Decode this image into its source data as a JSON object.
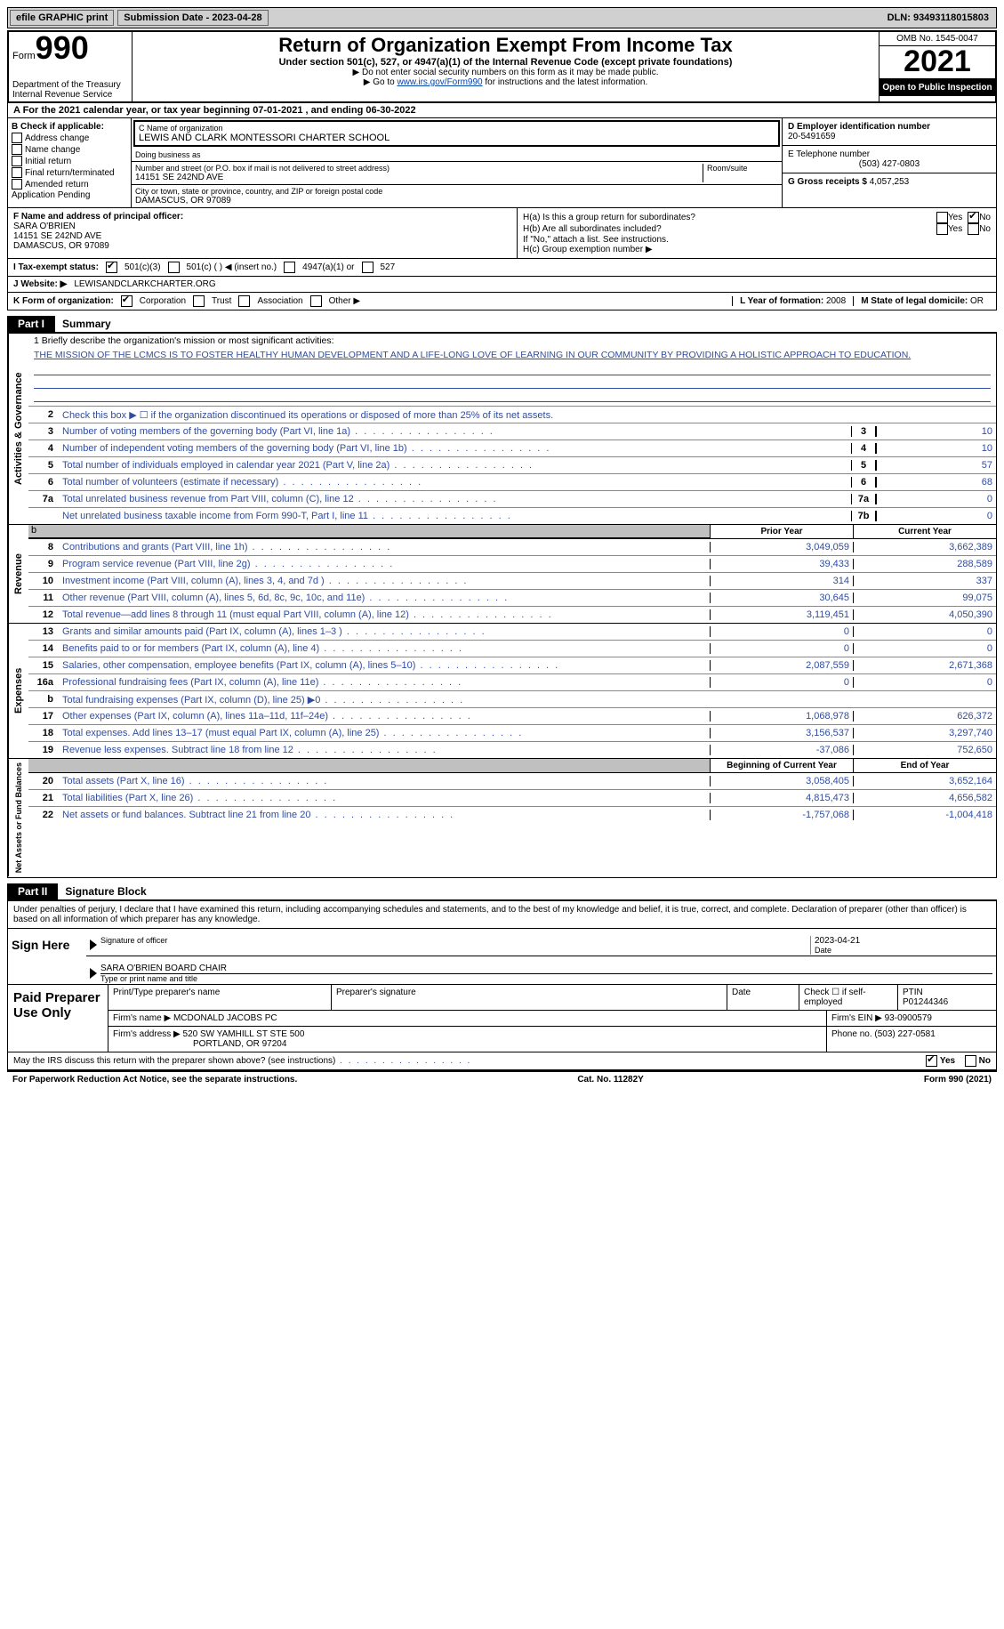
{
  "topBar": {
    "efile": "efile GRAPHIC print",
    "submission": "Submission Date - 2023-04-28",
    "dln": "DLN: 93493118015803"
  },
  "header": {
    "formWord": "Form",
    "formNum": "990",
    "dept": "Department of the Treasury Internal Revenue Service",
    "title": "Return of Organization Exempt From Income Tax",
    "subtitle": "Under section 501(c), 527, or 4947(a)(1) of the Internal Revenue Code (except private foundations)",
    "instr1": "▶ Do not enter social security numbers on this form as it may be made public.",
    "instr2_pre": "▶ Go to ",
    "instr2_link": "www.irs.gov/Form990",
    "instr2_post": " for instructions and the latest information.",
    "omb": "OMB No. 1545-0047",
    "year": "2021",
    "openPub": "Open to Public Inspection"
  },
  "rowA": "A For the 2021 calendar year, or tax year beginning 07-01-2021   , and ending 06-30-2022",
  "colB": {
    "header": "B Check if applicable:",
    "items": [
      "Address change",
      "Name change",
      "Initial return",
      "Final return/terminated",
      "Amended return",
      "Application Pending"
    ]
  },
  "colC": {
    "nameLbl": "C Name of organization",
    "name": "LEWIS AND CLARK MONTESSORI CHARTER SCHOOL",
    "dba": "Doing business as",
    "addrLbl": "Number and street (or P.O. box if mail is not delivered to street address)",
    "addr": "14151 SE 242ND AVE",
    "room": "Room/suite",
    "cityLbl": "City or town, state or province, country, and ZIP or foreign postal code",
    "city": "DAMASCUS, OR  97089"
  },
  "colD": {
    "einLbl": "D Employer identification number",
    "ein": "20-5491659",
    "telLbl": "E Telephone number",
    "tel": "(503) 427-0803",
    "grossLbl": "G Gross receipts $",
    "gross": "4,057,253"
  },
  "rowF": {
    "lbl": "F Name and address of principal officer:",
    "name": "SARA O'BRIEN",
    "addr": "14151 SE 242ND AVE",
    "city": "DAMASCUS, OR  97089"
  },
  "rowH": {
    "ha": "H(a)  Is this a group return for subordinates?",
    "hb": "H(b)  Are all subordinates included?",
    "hbNote": "If \"No,\" attach a list. See instructions.",
    "hc": "H(c)  Group exemption number ▶",
    "yes": "Yes",
    "no": "No"
  },
  "rowI": {
    "lbl": "I  Tax-exempt status:",
    "o1": "501(c)(3)",
    "o2": "501(c) (  ) ◀ (insert no.)",
    "o3": "4947(a)(1) or",
    "o4": "527"
  },
  "rowJ": {
    "lbl": "J  Website: ▶",
    "val": "LEWISANDCLARKCHARTER.ORG"
  },
  "rowK": {
    "lbl": "K Form of organization:",
    "opts": [
      "Corporation",
      "Trust",
      "Association",
      "Other ▶"
    ],
    "yearLbl": "L Year of formation:",
    "year": "2008",
    "stateLbl": "M State of legal domicile:",
    "state": "OR"
  },
  "part1": {
    "tab": "Part I",
    "title": "Summary"
  },
  "sections": {
    "activities": "Activities & Governance",
    "revenue": "Revenue",
    "expenses": "Expenses",
    "netassets": "Net Assets or Fund Balances"
  },
  "line1": {
    "lbl": "1  Briefly describe the organization's mission or most significant activities:",
    "mission": "THE MISSION OF THE LCMCS IS TO FOSTER HEALTHY HUMAN DEVELOPMENT AND A LIFE-LONG LOVE OF LEARNING IN OUR COMMUNITY BY PROVIDING A HOLISTIC APPROACH TO EDUCATION."
  },
  "line2": "Check this box ▶ ☐  if the organization discontinued its operations or disposed of more than 25% of its net assets.",
  "govRows": [
    {
      "n": "3",
      "d": "Number of voting members of the governing body (Part VI, line 1a)",
      "b": "3",
      "v": "10"
    },
    {
      "n": "4",
      "d": "Number of independent voting members of the governing body (Part VI, line 1b)",
      "b": "4",
      "v": "10"
    },
    {
      "n": "5",
      "d": "Total number of individuals employed in calendar year 2021 (Part V, line 2a)",
      "b": "5",
      "v": "57"
    },
    {
      "n": "6",
      "d": "Total number of volunteers (estimate if necessary)",
      "b": "6",
      "v": "68"
    },
    {
      "n": "7a",
      "d": "Total unrelated business revenue from Part VIII, column (C), line 12",
      "b": "7a",
      "v": "0"
    },
    {
      "n": "",
      "d": "Net unrelated business taxable income from Form 990-T, Part I, line 11",
      "b": "7b",
      "v": "0"
    }
  ],
  "colHdrs": {
    "prior": "Prior Year",
    "curr": "Current Year",
    "bcy": "Beginning of Current Year",
    "eoy": "End of Year"
  },
  "revRows": [
    {
      "n": "8",
      "d": "Contributions and grants (Part VIII, line 1h)",
      "p": "3,049,059",
      "c": "3,662,389"
    },
    {
      "n": "9",
      "d": "Program service revenue (Part VIII, line 2g)",
      "p": "39,433",
      "c": "288,589"
    },
    {
      "n": "10",
      "d": "Investment income (Part VIII, column (A), lines 3, 4, and 7d )",
      "p": "314",
      "c": "337"
    },
    {
      "n": "11",
      "d": "Other revenue (Part VIII, column (A), lines 5, 6d, 8c, 9c, 10c, and 11e)",
      "p": "30,645",
      "c": "99,075"
    },
    {
      "n": "12",
      "d": "Total revenue—add lines 8 through 11 (must equal Part VIII, column (A), line 12)",
      "p": "3,119,451",
      "c": "4,050,390"
    }
  ],
  "expRows": [
    {
      "n": "13",
      "d": "Grants and similar amounts paid (Part IX, column (A), lines 1–3 )",
      "p": "0",
      "c": "0"
    },
    {
      "n": "14",
      "d": "Benefits paid to or for members (Part IX, column (A), line 4)",
      "p": "0",
      "c": "0"
    },
    {
      "n": "15",
      "d": "Salaries, other compensation, employee benefits (Part IX, column (A), lines 5–10)",
      "p": "2,087,559",
      "c": "2,671,368"
    },
    {
      "n": "16a",
      "d": "Professional fundraising fees (Part IX, column (A), line 11e)",
      "p": "0",
      "c": "0"
    },
    {
      "n": "b",
      "d": "Total fundraising expenses (Part IX, column (D), line 25) ▶0",
      "p": "",
      "c": "",
      "shaded": true
    },
    {
      "n": "17",
      "d": "Other expenses (Part IX, column (A), lines 11a–11d, 11f–24e)",
      "p": "1,068,978",
      "c": "626,372"
    },
    {
      "n": "18",
      "d": "Total expenses. Add lines 13–17 (must equal Part IX, column (A), line 25)",
      "p": "3,156,537",
      "c": "3,297,740"
    },
    {
      "n": "19",
      "d": "Revenue less expenses. Subtract line 18 from line 12",
      "p": "-37,086",
      "c": "752,650"
    }
  ],
  "netRows": [
    {
      "n": "20",
      "d": "Total assets (Part X, line 16)",
      "p": "3,058,405",
      "c": "3,652,164"
    },
    {
      "n": "21",
      "d": "Total liabilities (Part X, line 26)",
      "p": "4,815,473",
      "c": "4,656,582"
    },
    {
      "n": "22",
      "d": "Net assets or fund balances. Subtract line 21 from line 20",
      "p": "-1,757,068",
      "c": "-1,004,418"
    }
  ],
  "part2": {
    "tab": "Part II",
    "title": "Signature Block"
  },
  "penalties": "Under penalties of perjury, I declare that I have examined this return, including accompanying schedules and statements, and to the best of my knowledge and belief, it is true, correct, and complete. Declaration of preparer (other than officer) is based on all information of which preparer has any knowledge.",
  "sign": {
    "here": "Sign Here",
    "sigOfficer": "Signature of officer",
    "date": "Date",
    "dateVal": "2023-04-21",
    "name": "SARA O'BRIEN  BOARD CHAIR",
    "typeName": "Type or print name and title"
  },
  "prep": {
    "title": "Paid Preparer Use Only",
    "printName": "Print/Type preparer's name",
    "prepSig": "Preparer's signature",
    "date": "Date",
    "chkSelf": "Check ☐ if self-employed",
    "ptinLbl": "PTIN",
    "ptin": "P01244346",
    "firmNameLbl": "Firm's name    ▶",
    "firmName": "MCDONALD JACOBS PC",
    "firmEinLbl": "Firm's EIN ▶",
    "firmEin": "93-0900579",
    "firmAddrLbl": "Firm's address ▶",
    "firmAddr1": "520 SW YAMHILL ST STE 500",
    "firmAddr2": "PORTLAND, OR  97204",
    "phoneLbl": "Phone no.",
    "phone": "(503) 227-0581"
  },
  "discuss": "May the IRS discuss this return with the preparer shown above? (see instructions)",
  "footer": {
    "pra": "For Paperwork Reduction Act Notice, see the separate instructions.",
    "cat": "Cat. No. 11282Y",
    "form": "Form 990 (2021)"
  }
}
